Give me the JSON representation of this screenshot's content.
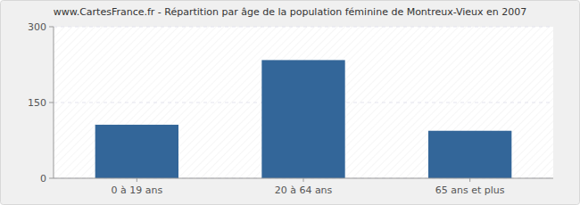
{
  "chart_data": {
    "type": "bar",
    "title": "www.CartesFrance.fr - Répartition par âge de la population féminine de Montreux-Vieux en 2007",
    "categories": [
      "0 à 19 ans",
      "20 à 64 ans",
      "65 ans et plus"
    ],
    "values": [
      106,
      234,
      94
    ],
    "color": "#336699",
    "ylim": [
      0,
      300
    ],
    "yticks": [
      0,
      150,
      300
    ],
    "grid": true
  }
}
